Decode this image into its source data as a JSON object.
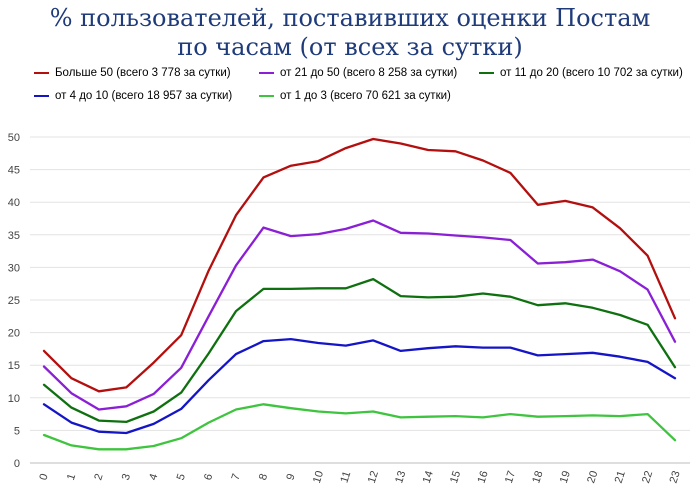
{
  "title_line1": "% пользователей, поставивших оценки Постам",
  "title_line2": "по часам (от всех за сутки)",
  "chart_data": {
    "type": "line",
    "title": "% пользователей, поставивших оценки Постам по часам (от всех за сутки)",
    "x": [
      "0",
      "1",
      "2",
      "3",
      "4",
      "5",
      "6",
      "7",
      "8",
      "9",
      "10",
      "11",
      "12",
      "13",
      "14",
      "15",
      "16",
      "17",
      "18",
      "19",
      "20",
      "21",
      "22",
      "23"
    ],
    "y_ticks": [
      "0",
      "5",
      "10",
      "15",
      "20",
      "25",
      "30",
      "35",
      "40",
      "45",
      "50"
    ],
    "ylim": [
      0,
      50
    ],
    "grid": true,
    "legend_position": "top",
    "series": [
      {
        "name": "Больше 50 (всего 3 778 за сутки)",
        "color": "#b30f0f",
        "values": [
          17.2,
          13.0,
          11.0,
          11.6,
          15.4,
          19.6,
          29.5,
          38.0,
          43.8,
          45.6,
          46.3,
          48.3,
          49.7,
          49.0,
          48.0,
          47.8,
          46.4,
          44.5,
          39.6,
          40.2,
          39.2,
          36.0,
          31.8,
          22.2
        ]
      },
      {
        "name": "от 21 до 50 (всего 8 258 за сутки)",
        "color": "#8a1fd6",
        "values": [
          14.8,
          10.7,
          8.2,
          8.7,
          10.6,
          14.6,
          22.5,
          30.3,
          36.1,
          34.8,
          35.1,
          35.9,
          37.2,
          35.3,
          35.2,
          34.9,
          34.6,
          34.2,
          30.6,
          30.8,
          31.2,
          29.4,
          26.6,
          18.6
        ]
      },
      {
        "name": "от 11 до 20 (всего 10 702 за сутки)",
        "color": "#0f7010",
        "values": [
          12.0,
          8.5,
          6.5,
          6.3,
          7.9,
          10.8,
          16.8,
          23.3,
          26.7,
          26.7,
          26.8,
          26.8,
          28.2,
          25.6,
          25.4,
          25.5,
          26.0,
          25.5,
          24.2,
          24.5,
          23.8,
          22.7,
          21.2,
          14.7
        ]
      },
      {
        "name": "от 4 до 10 (всего 18 957 за сутки)",
        "color": "#1515c8",
        "values": [
          9.0,
          6.2,
          4.8,
          4.6,
          6.0,
          8.3,
          12.7,
          16.7,
          18.7,
          19.0,
          18.4,
          18.0,
          18.8,
          17.2,
          17.6,
          17.9,
          17.7,
          17.7,
          16.5,
          16.7,
          16.9,
          16.3,
          15.5,
          13.0
        ]
      },
      {
        "name": "от 1 до 3 (всего 70 621 за сутки)",
        "color": "#3ec43e",
        "values": [
          4.3,
          2.7,
          2.1,
          2.1,
          2.6,
          3.8,
          6.2,
          8.2,
          9.0,
          8.4,
          7.9,
          7.6,
          7.9,
          7.0,
          7.1,
          7.2,
          7.0,
          7.5,
          7.1,
          7.2,
          7.3,
          7.2,
          7.5,
          3.5
        ]
      }
    ]
  }
}
